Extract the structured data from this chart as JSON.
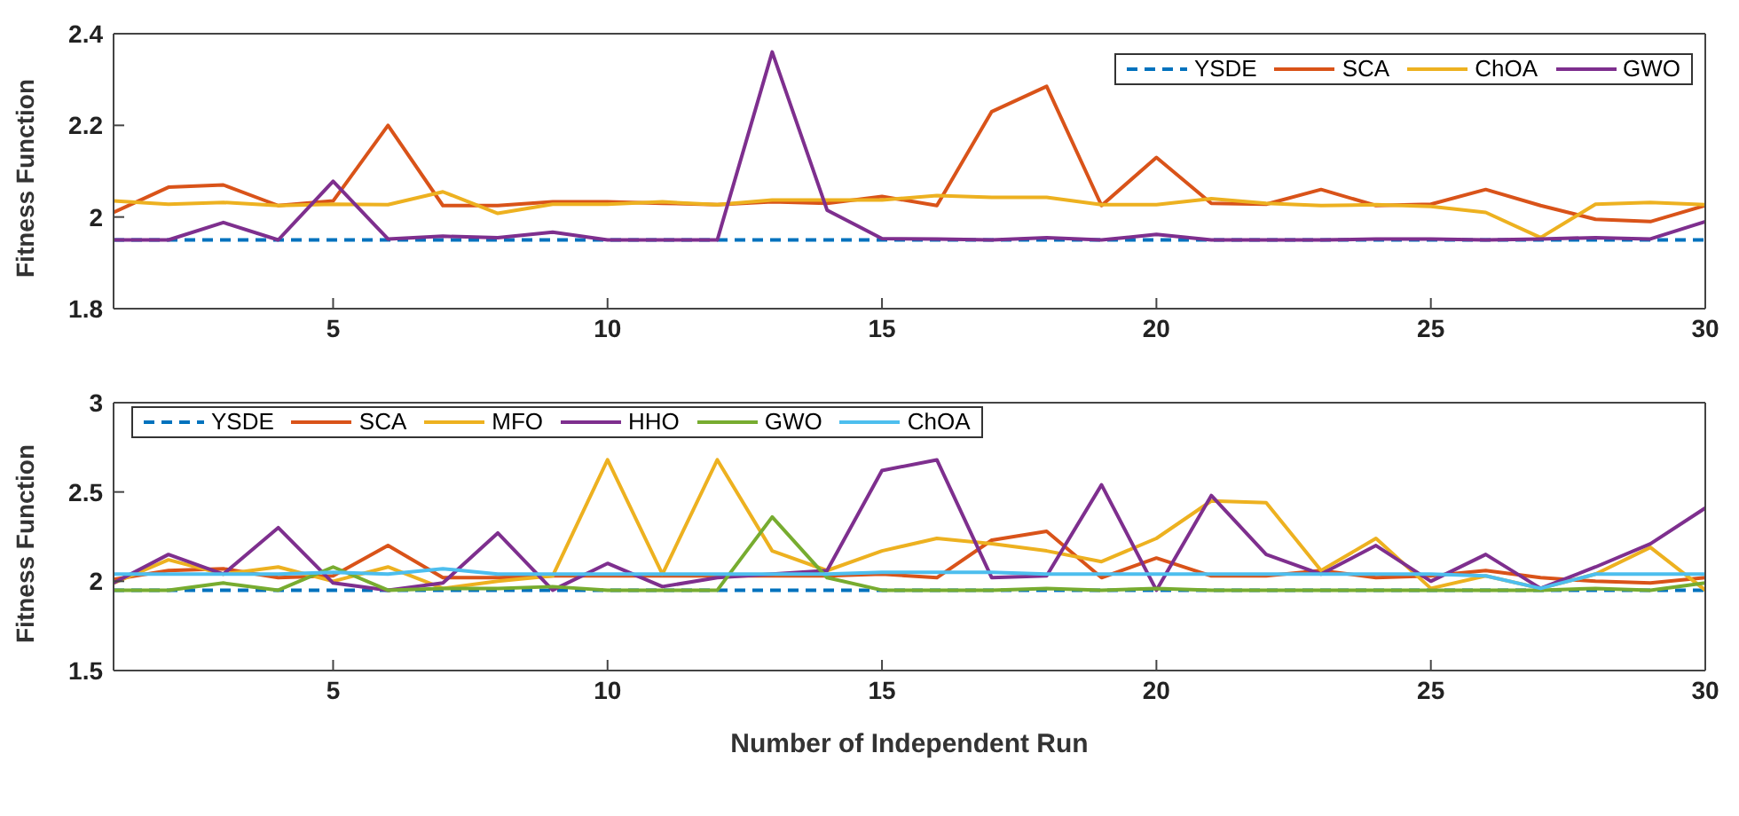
{
  "chart_data": [
    {
      "type": "line",
      "ylabel": "Fitness Function",
      "x": [
        1,
        2,
        3,
        4,
        5,
        6,
        7,
        8,
        9,
        10,
        11,
        12,
        13,
        14,
        15,
        16,
        17,
        18,
        19,
        20,
        21,
        22,
        23,
        24,
        25,
        26,
        27,
        28,
        29,
        30
      ],
      "xlim": [
        1,
        30
      ],
      "xticks": [
        5,
        10,
        15,
        20,
        25,
        30
      ],
      "ylim": [
        1.8,
        2.4
      ],
      "yticks": [
        1.8,
        2,
        2.2,
        2.4
      ],
      "grid": false,
      "legend": "top right",
      "marker": "none",
      "series": [
        {
          "name": "YSDE",
          "color": "#0072bd",
          "line_style": "dashed",
          "values": [
            1.95,
            1.95,
            1.95,
            1.95,
            1.95,
            1.95,
            1.95,
            1.95,
            1.95,
            1.95,
            1.95,
            1.95,
            1.95,
            1.95,
            1.95,
            1.95,
            1.95,
            1.95,
            1.95,
            1.95,
            1.95,
            1.95,
            1.95,
            1.95,
            1.95,
            1.95,
            1.95,
            1.95,
            1.95,
            1.95
          ]
        },
        {
          "name": "SCA",
          "color": "#d95319",
          "values": [
            2.01,
            2.065,
            2.07,
            2.025,
            2.035,
            2.2,
            2.025,
            2.025,
            2.033,
            2.033,
            2.03,
            2.027,
            2.033,
            2.03,
            2.045,
            2.025,
            2.23,
            2.285,
            2.025,
            2.13,
            2.03,
            2.028,
            2.06,
            2.025,
            2.028,
            2.06,
            2.025,
            1.995,
            1.99,
            2.025
          ]
        },
        {
          "name": "ChOA",
          "color": "#edb120",
          "values": [
            2.035,
            2.028,
            2.032,
            2.025,
            2.028,
            2.027,
            2.055,
            2.008,
            2.028,
            2.028,
            2.033,
            2.027,
            2.037,
            2.037,
            2.037,
            2.047,
            2.043,
            2.043,
            2.027,
            2.027,
            2.04,
            2.03,
            2.025,
            2.027,
            2.023,
            2.01,
            1.955,
            2.028,
            2.032,
            2.027
          ]
        },
        {
          "name": "GWO",
          "color": "#7e2f8e",
          "values": [
            1.95,
            1.95,
            1.988,
            1.95,
            2.078,
            1.952,
            1.958,
            1.955,
            1.967,
            1.95,
            1.95,
            1.95,
            2.36,
            2.015,
            1.953,
            1.952,
            1.95,
            1.955,
            1.95,
            1.962,
            1.95,
            1.95,
            1.95,
            1.952,
            1.952,
            1.95,
            1.952,
            1.955,
            1.952,
            1.99
          ]
        }
      ]
    },
    {
      "type": "line",
      "xlabel": "Number of Independent Run",
      "ylabel": "Fitness Function",
      "x": [
        1,
        2,
        3,
        4,
        5,
        6,
        7,
        8,
        9,
        10,
        11,
        12,
        13,
        14,
        15,
        16,
        17,
        18,
        19,
        20,
        21,
        22,
        23,
        24,
        25,
        26,
        27,
        28,
        29,
        30
      ],
      "xlim": [
        1,
        30
      ],
      "xticks": [
        5,
        10,
        15,
        20,
        25,
        30
      ],
      "ylim": [
        1.5,
        3
      ],
      "yticks": [
        1.5,
        2,
        2.5,
        3
      ],
      "grid": false,
      "legend": "top left",
      "marker": "none",
      "series": [
        {
          "name": "YSDE",
          "color": "#0072bd",
          "line_style": "dashed",
          "values": [
            1.95,
            1.95,
            1.95,
            1.95,
            1.95,
            1.95,
            1.95,
            1.95,
            1.95,
            1.95,
            1.95,
            1.95,
            1.95,
            1.95,
            1.95,
            1.95,
            1.95,
            1.95,
            1.95,
            1.95,
            1.95,
            1.95,
            1.95,
            1.95,
            1.95,
            1.95,
            1.95,
            1.95,
            1.95,
            1.95
          ]
        },
        {
          "name": "SCA",
          "color": "#d95319",
          "values": [
            2.01,
            2.06,
            2.07,
            2.02,
            2.03,
            2.2,
            2.02,
            2.02,
            2.03,
            2.03,
            2.03,
            2.03,
            2.03,
            2.03,
            2.04,
            2.02,
            2.23,
            2.28,
            2.02,
            2.13,
            2.03,
            2.03,
            2.06,
            2.02,
            2.03,
            2.06,
            2.02,
            2.0,
            1.99,
            2.02
          ]
        },
        {
          "name": "MFO",
          "color": "#edb120",
          "values": [
            1.99,
            2.12,
            2.04,
            2.08,
            2.0,
            2.08,
            1.96,
            2.0,
            2.03,
            2.68,
            2.04,
            2.68,
            2.17,
            2.06,
            2.17,
            2.24,
            2.21,
            2.17,
            2.11,
            2.24,
            2.45,
            2.44,
            2.06,
            2.24,
            1.96,
            2.03,
            1.96,
            2.04,
            2.19,
            1.95
          ]
        },
        {
          "name": "HHO",
          "color": "#7e2f8e",
          "values": [
            1.99,
            2.15,
            2.04,
            2.3,
            1.99,
            1.95,
            1.99,
            2.27,
            1.95,
            2.1,
            1.97,
            2.02,
            2.04,
            2.06,
            2.62,
            2.68,
            2.02,
            2.03,
            2.54,
            1.95,
            2.48,
            2.15,
            2.04,
            2.2,
            2.0,
            2.15,
            1.96,
            2.08,
            2.21,
            2.41
          ]
        },
        {
          "name": "GWO",
          "color": "#77ac30",
          "values": [
            1.95,
            1.95,
            1.99,
            1.95,
            2.08,
            1.95,
            1.96,
            1.96,
            1.97,
            1.95,
            1.95,
            1.95,
            2.36,
            2.02,
            1.95,
            1.95,
            1.95,
            1.96,
            1.95,
            1.96,
            1.95,
            1.95,
            1.95,
            1.95,
            1.95,
            1.95,
            1.95,
            1.96,
            1.95,
            1.99
          ]
        },
        {
          "name": "ChOA",
          "color": "#4dbeee",
          "values": [
            2.04,
            2.04,
            2.04,
            2.04,
            2.05,
            2.04,
            2.07,
            2.04,
            2.04,
            2.04,
            2.04,
            2.04,
            2.04,
            2.04,
            2.05,
            2.05,
            2.05,
            2.04,
            2.04,
            2.04,
            2.04,
            2.04,
            2.04,
            2.04,
            2.04,
            2.03,
            1.96,
            2.04,
            2.04,
            2.04
          ]
        }
      ]
    }
  ]
}
